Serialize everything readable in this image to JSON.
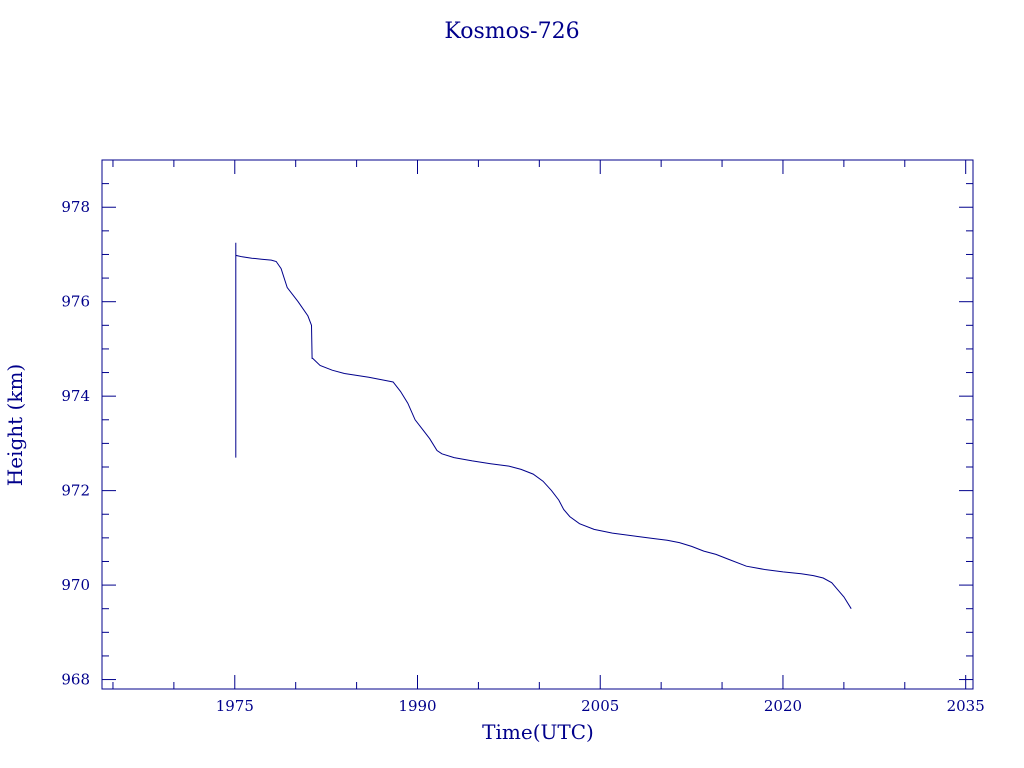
{
  "chart_data": {
    "type": "line",
    "title": "Kosmos-726",
    "xlabel": "Time(UTC)",
    "ylabel": "Height (km)",
    "xlim": [
      1964.1,
      2035.6
    ],
    "ylim": [
      967.8,
      979.0
    ],
    "x_ticks": [
      1975,
      1990,
      2005,
      2020,
      2035
    ],
    "x_tick_labels": [
      "1975",
      "1990",
      "2005",
      "2020",
      "2035"
    ],
    "y_ticks": [
      968,
      970,
      972,
      974,
      976,
      978
    ],
    "y_tick_labels": [
      "968",
      "970",
      "972",
      "974",
      "976",
      "978"
    ],
    "grid": false,
    "legend": "none",
    "color": "#00008b",
    "series": [
      {
        "x": [
          1975.08,
          1975.08,
          1975.08,
          1975.1,
          1975.6,
          1976.4,
          1977.2,
          1978.0,
          1978.4,
          1978.8,
          1979.3,
          1980.2,
          1981.0,
          1981.3,
          1981.35,
          1981.4,
          1982.0,
          1983.0,
          1984.0,
          1985.0,
          1986.0,
          1987.0,
          1988.0,
          1988.6,
          1989.2,
          1989.8,
          1990.4,
          1991.0,
          1991.6,
          1992.0,
          1993.0,
          1994.5,
          1996.0,
          1997.5,
          1998.5,
          1999.5,
          2000.3,
          2001.0,
          2001.6,
          2002.0,
          2002.5,
          2003.3,
          2004.5,
          2006.0,
          2008.0,
          2009.5,
          2010.5,
          2011.5,
          2012.5,
          2013.5,
          2014.5,
          2015.5,
          2017.0,
          2018.5,
          2020.0,
          2021.5,
          2022.5,
          2023.3,
          2024.0,
          2024.5,
          2025.0,
          2025.6
        ],
        "y": [
          972.7,
          977.25,
          977.0,
          976.98,
          976.95,
          976.92,
          976.9,
          976.88,
          976.85,
          976.7,
          976.3,
          976.0,
          975.7,
          975.5,
          974.8,
          974.8,
          974.65,
          974.55,
          974.48,
          974.44,
          974.4,
          974.35,
          974.3,
          974.1,
          973.85,
          973.5,
          973.3,
          973.1,
          972.85,
          972.78,
          972.7,
          972.63,
          972.57,
          972.52,
          972.45,
          972.35,
          972.2,
          972.0,
          971.8,
          971.6,
          971.45,
          971.3,
          971.18,
          971.1,
          971.03,
          970.98,
          970.95,
          970.9,
          970.82,
          970.72,
          970.65,
          970.55,
          970.4,
          970.33,
          970.28,
          970.24,
          970.2,
          970.15,
          970.05,
          969.9,
          969.75,
          969.5
        ]
      }
    ]
  }
}
